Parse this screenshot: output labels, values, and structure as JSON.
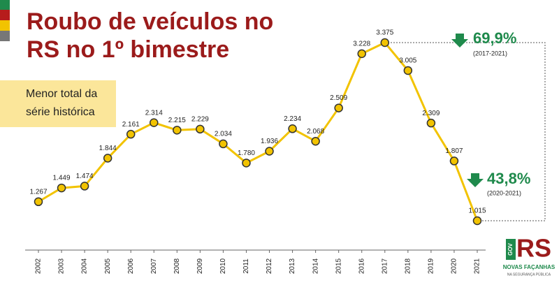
{
  "chart_data": {
    "type": "line",
    "title": [
      "Roubo de veículos no",
      "RS no 1º bimestre"
    ],
    "subtitle": [
      "Menor total da",
      "série histórica"
    ],
    "categories": [
      "2002",
      "2003",
      "2004",
      "2005",
      "2006",
      "2007",
      "2008",
      "2009",
      "2010",
      "2011",
      "2012",
      "2013",
      "2014",
      "2015",
      "2016",
      "2017",
      "2018",
      "2019",
      "2020",
      "2021"
    ],
    "values": [
      1267,
      1449,
      1474,
      1844,
      2161,
      2314,
      2215,
      2229,
      2034,
      1780,
      1936,
      2234,
      2068,
      2509,
      3228,
      3375,
      3005,
      2309,
      1807,
      1015
    ],
    "value_labels": [
      "1.267",
      "1.449",
      "1.474",
      "1.844",
      "2.161",
      "2.314",
      "2.215",
      "2.229",
      "2.034",
      "1.780",
      "1.936",
      "2.234",
      "2.068",
      "2.509",
      "3.228",
      "3.375",
      "3.005",
      "2.309",
      "1.807",
      "1.015"
    ],
    "color": "#f2c300",
    "annotations": [
      {
        "text": "69,9%",
        "period": "(2017-2021)"
      },
      {
        "text": "43,8%",
        "period": "(2020-2021)"
      }
    ],
    "logo": {
      "mark": "RS",
      "gov": "GOV",
      "line1": "NOVAS FAÇANHAS",
      "line2": "NA SEGURANÇA PÚBLICA"
    }
  }
}
